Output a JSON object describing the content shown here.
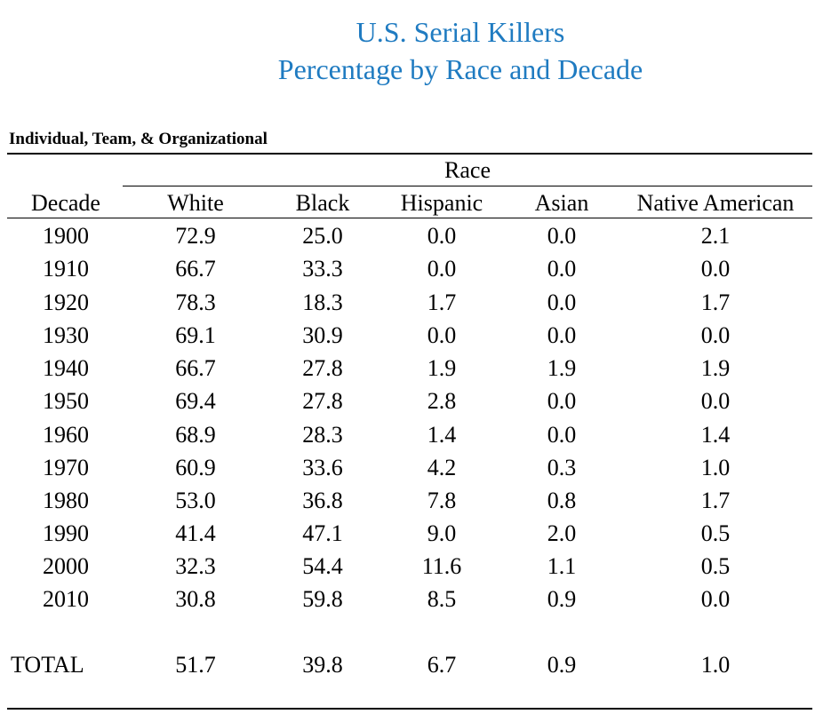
{
  "title": {
    "line1": "U.S. Serial Killers",
    "line2": "Percentage by Race and Decade",
    "color": "#1f7bc1"
  },
  "section_label": "Individual, Team, & Organizational",
  "table": {
    "group_header": "Race",
    "columns": [
      "Decade",
      "White",
      "Black",
      "Hispanic",
      "Asian",
      "Native American"
    ],
    "rows": [
      [
        "1900",
        "72.9",
        "25.0",
        "0.0",
        "0.0",
        "2.1"
      ],
      [
        "1910",
        "66.7",
        "33.3",
        "0.0",
        "0.0",
        "0.0"
      ],
      [
        "1920",
        "78.3",
        "18.3",
        "1.7",
        "0.0",
        "1.7"
      ],
      [
        "1930",
        "69.1",
        "30.9",
        "0.0",
        "0.0",
        "0.0"
      ],
      [
        "1940",
        "66.7",
        "27.8",
        "1.9",
        "1.9",
        "1.9"
      ],
      [
        "1950",
        "69.4",
        "27.8",
        "2.8",
        "0.0",
        "0.0"
      ],
      [
        "1960",
        "68.9",
        "28.3",
        "1.4",
        "0.0",
        "1.4"
      ],
      [
        "1970",
        "60.9",
        "33.6",
        "4.2",
        "0.3",
        "1.0"
      ],
      [
        "1980",
        "53.0",
        "36.8",
        "7.8",
        "0.8",
        "1.7"
      ],
      [
        "1990",
        "41.4",
        "47.1",
        "9.0",
        "2.0",
        "0.5"
      ],
      [
        "2000",
        "32.3",
        "54.4",
        "11.6",
        "1.1",
        "0.5"
      ],
      [
        "2010",
        "30.8",
        "59.8",
        "8.5",
        "0.9",
        "0.0"
      ]
    ],
    "total": [
      "TOTAL",
      "51.7",
      "39.8",
      "6.7",
      "0.9",
      "1.0"
    ]
  }
}
